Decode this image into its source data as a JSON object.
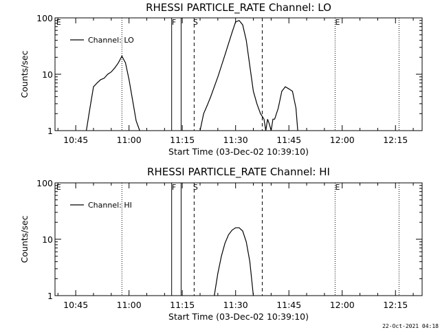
{
  "chart_data": [
    {
      "type": "line",
      "title": "RHESSI PARTICLE_RATE Channel: LO",
      "xlabel": "Start Time (03-Dec-02 10:39:10)",
      "ylabel": "Counts/sec",
      "yscale": "log",
      "ylim": [
        1,
        100
      ],
      "xlim": [
        "10:39:10",
        "12:22:30"
      ],
      "x_ticks": [
        "10:45",
        "11:00",
        "11:15",
        "11:30",
        "11:45",
        "12:00",
        "12:15"
      ],
      "y_ticks": [
        "1",
        "10",
        "100"
      ],
      "legend": {
        "label": "Channel: LO",
        "placement": "top-left"
      },
      "flags": [
        "E",
        "F",
        "S",
        "E"
      ],
      "series": [
        {
          "name": "Channel: LO",
          "x": [
            "10:48:00",
            "10:49:00",
            "10:50:00",
            "10:51:00",
            "10:52:00",
            "10:53:00",
            "10:54:00",
            "10:55:00",
            "10:56:00",
            "10:57:00",
            "10:58:00",
            "10:59:00",
            "11:00:00",
            "11:01:00",
            "11:02:00",
            "11:03:00",
            null,
            "11:20:00",
            "11:21:00",
            "11:22:00",
            "11:23:00",
            "11:24:00",
            "11:25:00",
            "11:26:00",
            "11:27:00",
            "11:28:00",
            "11:29:00",
            "11:30:00",
            "11:31:00",
            "11:32:00",
            "11:33:00",
            "11:34:00",
            "11:35:00",
            "11:36:00",
            "11:37:00",
            "11:38:00",
            "11:38:30",
            "11:39:00",
            "11:39:30",
            "11:40:00",
            "11:40:30",
            "11:41:00",
            "11:42:00",
            "11:43:00",
            "11:44:00",
            "11:45:00",
            "11:46:00",
            "11:47:00",
            "11:47:30"
          ],
          "y": [
            1,
            2.5,
            6,
            7,
            8,
            8.5,
            10,
            11,
            13,
            16,
            21,
            16,
            8,
            3.5,
            1.5,
            1,
            null,
            1,
            2,
            2.8,
            4,
            6,
            9,
            14,
            22,
            35,
            55,
            85,
            90,
            75,
            40,
            14,
            5,
            3,
            2,
            1.6,
            1,
            1.6,
            1.3,
            1,
            1.6,
            1.6,
            2.5,
            5,
            6,
            5.5,
            5,
            2.5,
            1
          ]
        }
      ]
    },
    {
      "type": "line",
      "title": "RHESSI PARTICLE_RATE Channel: HI",
      "xlabel": "Start Time (03-Dec-02 10:39:10)",
      "ylabel": "Counts/sec",
      "yscale": "log",
      "ylim": [
        1,
        100
      ],
      "xlim": [
        "10:39:10",
        "12:22:30"
      ],
      "x_ticks": [
        "10:45",
        "11:00",
        "11:15",
        "11:30",
        "11:45",
        "12:00",
        "12:15"
      ],
      "y_ticks": [
        "1",
        "10",
        "100"
      ],
      "legend": {
        "label": "Channel: HI",
        "placement": "top-left"
      },
      "flags": [
        "E",
        "F",
        "S",
        "E"
      ],
      "series": [
        {
          "name": "Channel: HI",
          "x": [
            "11:24:00",
            "11:25:00",
            "11:26:00",
            "11:27:00",
            "11:28:00",
            "11:29:00",
            "11:30:00",
            "11:31:00",
            "11:32:00",
            "11:33:00",
            "11:34:00",
            "11:35:00"
          ],
          "y": [
            1,
            2.5,
            5,
            8.5,
            12,
            14.5,
            16,
            16,
            14,
            9,
            4,
            1
          ]
        }
      ]
    }
  ],
  "footer": {
    "timestamp": "22-Oct-2021 04:18"
  }
}
